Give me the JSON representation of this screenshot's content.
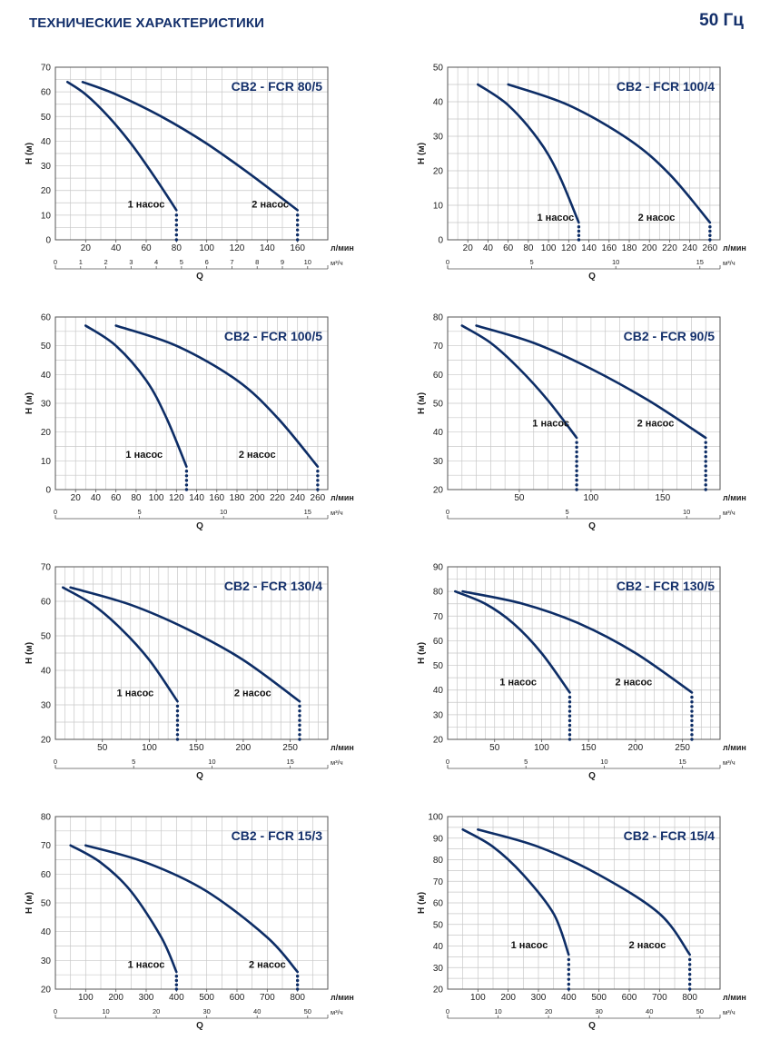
{
  "page": {
    "title": "ТЕХНИЧЕСКИЕ ХАРАКТЕРИСТИКИ",
    "frequency": "50 Гц"
  },
  "colors": {
    "curve": "#0d2d66",
    "grid": "#c8c8c8",
    "frame": "#555555",
    "title": "#14306b",
    "text": "#222222"
  },
  "chart_data": [
    {
      "type": "line",
      "title": "CB2 - FCR 80/5",
      "ylabel": "H (м)",
      "xlabel": "Q",
      "x_unit": "л/мин",
      "x2_unit": "м³/ч",
      "ylim": [
        0,
        70
      ],
      "yticks": [
        0,
        10,
        20,
        30,
        40,
        50,
        60,
        70
      ],
      "xlim": [
        0,
        180
      ],
      "xticks": [
        20,
        40,
        60,
        80,
        100,
        120,
        140,
        160
      ],
      "x2lim": [
        0,
        10.8
      ],
      "x2ticks": [
        1,
        2,
        3,
        4,
        5,
        6,
        7,
        8,
        9,
        10
      ],
      "x_grid_step": 10,
      "y_grid_step": 5,
      "series": [
        {
          "name": "1 насос",
          "label_at": [
            60,
            13
          ],
          "x": [
            8,
            20,
            35,
            50,
            65,
            80
          ],
          "y": [
            64,
            59,
            50,
            39,
            26,
            12
          ],
          "drop": [
            80,
            12,
            0
          ]
        },
        {
          "name": "2 насос",
          "label_at": [
            142,
            13
          ],
          "x": [
            18,
            40,
            70,
            100,
            130,
            160
          ],
          "y": [
            64,
            59,
            50,
            39,
            26,
            12
          ],
          "drop": [
            160,
            12,
            0
          ]
        }
      ]
    },
    {
      "type": "line",
      "title": "CB2 - FCR 100/4",
      "ylabel": "H (м)",
      "xlabel": "Q",
      "x_unit": "л/мин",
      "x2_unit": "м³/ч",
      "ylim": [
        0,
        50
      ],
      "yticks": [
        0,
        10,
        20,
        30,
        40,
        50
      ],
      "xlim": [
        0,
        270
      ],
      "xticks": [
        20,
        40,
        60,
        80,
        100,
        120,
        140,
        160,
        180,
        200,
        220,
        240,
        260
      ],
      "x2lim": [
        0,
        16.2
      ],
      "x2ticks": [
        5,
        10,
        15
      ],
      "x_grid_step": 10,
      "y_grid_step": 5,
      "series": [
        {
          "name": "1 насос",
          "label_at": [
            107,
            5.5
          ],
          "x": [
            30,
            60,
            90,
            110,
            130
          ],
          "y": [
            45,
            39,
            29,
            19,
            5
          ],
          "drop": [
            130,
            5,
            0
          ]
        },
        {
          "name": "2 насос",
          "label_at": [
            207,
            5.5
          ],
          "x": [
            60,
            120,
            180,
            220,
            260
          ],
          "y": [
            45,
            39,
            29,
            19,
            5
          ],
          "drop": [
            260,
            5,
            0
          ]
        }
      ]
    },
    {
      "type": "line",
      "title": "CB2 - FCR 100/5",
      "ylabel": "H (м)",
      "xlabel": "Q",
      "x_unit": "л/мин",
      "x2_unit": "м³/ч",
      "ylim": [
        0,
        60
      ],
      "yticks": [
        0,
        10,
        20,
        30,
        40,
        50,
        60
      ],
      "xlim": [
        0,
        270
      ],
      "xticks": [
        20,
        40,
        60,
        80,
        100,
        120,
        140,
        160,
        180,
        200,
        220,
        240,
        260
      ],
      "x2lim": [
        0,
        16.2
      ],
      "x2ticks": [
        5,
        10,
        15
      ],
      "x_grid_step": 10,
      "y_grid_step": 5,
      "series": [
        {
          "name": "1 насос",
          "label_at": [
            88,
            11
          ],
          "x": [
            30,
            60,
            90,
            110,
            130
          ],
          "y": [
            57,
            50,
            38,
            25,
            8
          ],
          "drop": [
            130,
            8,
            0
          ]
        },
        {
          "name": "2 насос",
          "label_at": [
            200,
            11
          ],
          "x": [
            60,
            120,
            180,
            220,
            260
          ],
          "y": [
            57,
            50,
            38,
            25,
            8
          ],
          "drop": [
            260,
            8,
            0
          ]
        }
      ]
    },
    {
      "type": "line",
      "title": "CB2 - FCR 90/5",
      "ylabel": "H (м)",
      "xlabel": "Q",
      "x_unit": "л/мин",
      "x2_unit": "м³/ч",
      "ylim": [
        20,
        80
      ],
      "yticks": [
        20,
        30,
        40,
        50,
        60,
        70,
        80
      ],
      "xlim": [
        0,
        190
      ],
      "xticks": [
        50,
        100,
        150
      ],
      "x2lim": [
        0,
        11.4
      ],
      "x2ticks": [
        5,
        10
      ],
      "x_grid_step": 10,
      "y_grid_step": 5,
      "series": [
        {
          "name": "1 насос",
          "label_at": [
            72,
            42
          ],
          "x": [
            10,
            30,
            50,
            70,
            90
          ],
          "y": [
            77,
            71,
            62,
            51,
            38
          ],
          "drop": [
            90,
            38,
            20
          ]
        },
        {
          "name": "2 насос",
          "label_at": [
            145,
            42
          ],
          "x": [
            20,
            60,
            100,
            140,
            180
          ],
          "y": [
            77,
            71,
            62,
            51,
            38
          ],
          "drop": [
            180,
            38,
            20
          ]
        }
      ]
    },
    {
      "type": "line",
      "title": "CB2 - FCR 130/4",
      "ylabel": "H (м)",
      "xlabel": "Q",
      "x_unit": "л/мин",
      "x2_unit": "м³/ч",
      "ylim": [
        20,
        70
      ],
      "yticks": [
        20,
        30,
        40,
        50,
        60,
        70
      ],
      "xlim": [
        0,
        290
      ],
      "xticks": [
        50,
        100,
        150,
        200,
        250
      ],
      "x2lim": [
        0,
        17.4
      ],
      "x2ticks": [
        5,
        10,
        15
      ],
      "x_grid_step": 10,
      "y_grid_step": 5,
      "series": [
        {
          "name": "1 насос",
          "label_at": [
            85,
            32.5
          ],
          "x": [
            8,
            40,
            70,
            100,
            130
          ],
          "y": [
            64,
            59,
            52,
            43,
            31
          ],
          "drop": [
            130,
            31,
            20
          ]
        },
        {
          "name": "2 насос",
          "label_at": [
            210,
            32.5
          ],
          "x": [
            16,
            80,
            140,
            200,
            260
          ],
          "y": [
            64,
            59,
            52,
            43,
            31
          ],
          "drop": [
            260,
            31,
            20
          ]
        }
      ]
    },
    {
      "type": "line",
      "title": "CB2 - FCR 130/5",
      "ylabel": "H (м)",
      "xlabel": "Q",
      "x_unit": "л/мин",
      "x2_unit": "м³/ч",
      "ylim": [
        20,
        90
      ],
      "yticks": [
        20,
        30,
        40,
        50,
        60,
        70,
        80,
        90
      ],
      "xlim": [
        0,
        290
      ],
      "xticks": [
        50,
        100,
        150,
        200,
        250
      ],
      "x2lim": [
        0,
        17.4
      ],
      "x2ticks": [
        5,
        10,
        15
      ],
      "x_grid_step": 10,
      "y_grid_step": 5,
      "series": [
        {
          "name": "1 насос",
          "label_at": [
            75,
            42
          ],
          "x": [
            8,
            40,
            70,
            100,
            130
          ],
          "y": [
            80,
            75,
            67,
            55,
            39
          ],
          "drop": [
            130,
            39,
            20
          ]
        },
        {
          "name": "2 насос",
          "label_at": [
            198,
            42
          ],
          "x": [
            16,
            80,
            140,
            200,
            260
          ],
          "y": [
            80,
            75,
            67,
            55,
            39
          ],
          "drop": [
            260,
            39,
            20
          ]
        }
      ]
    },
    {
      "type": "line",
      "title": "CB2 - FCR 15/3",
      "ylabel": "H (м)",
      "xlabel": "Q",
      "x_unit": "л/мин",
      "x2_unit": "м³/ч",
      "ylim": [
        20,
        80
      ],
      "yticks": [
        20,
        30,
        40,
        50,
        60,
        70,
        80
      ],
      "xlim": [
        0,
        900
      ],
      "xticks": [
        100,
        200,
        300,
        400,
        500,
        600,
        700,
        800
      ],
      "x2lim": [
        0,
        54
      ],
      "x2ticks": [
        10,
        20,
        30,
        40,
        50
      ],
      "x_grid_step": 50,
      "y_grid_step": 5,
      "series": [
        {
          "name": "1 насос",
          "label_at": [
            300,
            27.5
          ],
          "x": [
            50,
            150,
            250,
            350,
            400
          ],
          "y": [
            70,
            64,
            54,
            38,
            26
          ],
          "drop": [
            400,
            26,
            20
          ]
        },
        {
          "name": "2 насос",
          "label_at": [
            700,
            27.5
          ],
          "x": [
            100,
            300,
            500,
            700,
            800
          ],
          "y": [
            70,
            64,
            54,
            38,
            26
          ],
          "drop": [
            800,
            26,
            20
          ]
        }
      ]
    },
    {
      "type": "line",
      "title": "CB2 - FCR 15/4",
      "ylabel": "H (м)",
      "xlabel": "Q",
      "x_unit": "л/мин",
      "x2_unit": "м³/ч",
      "ylim": [
        20,
        100
      ],
      "yticks": [
        20,
        30,
        40,
        50,
        60,
        70,
        80,
        90,
        100
      ],
      "xlim": [
        0,
        900
      ],
      "xticks": [
        100,
        200,
        300,
        400,
        500,
        600,
        700,
        800
      ],
      "x2lim": [
        0,
        54
      ],
      "x2ticks": [
        10,
        20,
        30,
        40,
        50
      ],
      "x_grid_step": 50,
      "y_grid_step": 5,
      "series": [
        {
          "name": "1 насос",
          "label_at": [
            270,
            39
          ],
          "x": [
            50,
            150,
            250,
            350,
            400
          ],
          "y": [
            94,
            86,
            73,
            55,
            36
          ],
          "drop": [
            400,
            36,
            20
          ]
        },
        {
          "name": "2 насос",
          "label_at": [
            660,
            39
          ],
          "x": [
            100,
            300,
            500,
            700,
            800
          ],
          "y": [
            94,
            86,
            73,
            55,
            36
          ],
          "drop": [
            800,
            36,
            20
          ]
        }
      ]
    }
  ]
}
